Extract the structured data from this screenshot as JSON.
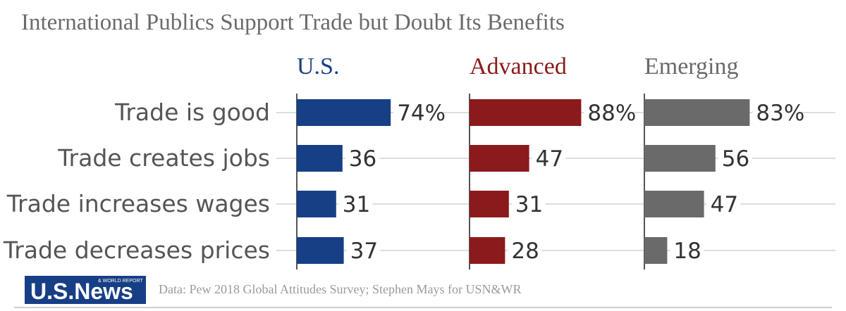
{
  "title": "International Publics Support Trade but Doubt Its Benefits",
  "footer": {
    "logo_text": "U.S.News",
    "logo_subtext": "& WORLD REPORT",
    "source": "Data: Pew 2018 Global Attitudes Survey; Stephen Mays for USN&WR"
  },
  "colors": {
    "us": "#173f86",
    "advanced": "#8b1a1c",
    "emerging": "#6a6a6a",
    "gridline": "#dddddd",
    "axis": "#555555"
  },
  "chart_data": {
    "type": "bar",
    "orientation": "horizontal",
    "title": "International Publics Support Trade but Doubt Its Benefits",
    "categories": [
      "Trade is good",
      "Trade creates jobs",
      "Trade increases wages",
      "Trade decreases prices"
    ],
    "value_labels_suffix_first": "%",
    "series": [
      {
        "name": "U.S.",
        "values": [
          74,
          36,
          31,
          37
        ]
      },
      {
        "name": "Advanced",
        "values": [
          88,
          47,
          31,
          28
        ]
      },
      {
        "name": "Emerging",
        "values": [
          83,
          56,
          47,
          18
        ]
      }
    ],
    "xlim": [
      0,
      100
    ],
    "grid": true,
    "legend": "panel titles above each column"
  }
}
